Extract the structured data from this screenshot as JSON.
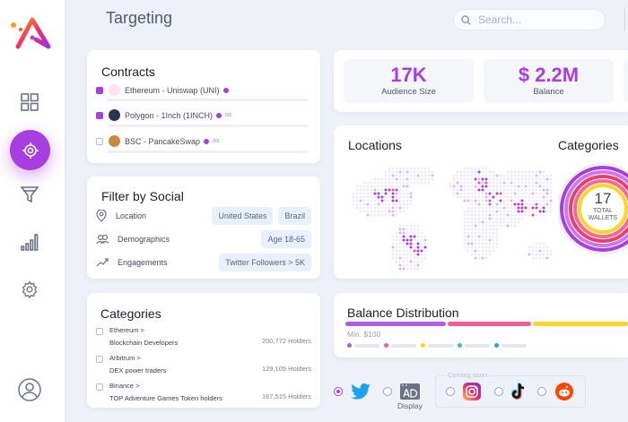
{
  "header": {
    "title": "Targeting",
    "search_placeholder": "Search..."
  },
  "sidebar": {
    "items": [
      {
        "icon": "dashboard-grid-icon"
      },
      {
        "icon": "target-icon",
        "active": true
      },
      {
        "icon": "funnel-icon"
      },
      {
        "icon": "bar-signal-icon"
      },
      {
        "icon": "gear-icon"
      }
    ],
    "profile_icon": "user-circle-icon"
  },
  "contracts": {
    "title": "Contracts",
    "items": [
      {
        "label": "Ethereum - Uniswap (UNI)",
        "checked": true,
        "badge": ""
      },
      {
        "label": "Polygon - 1Inch (1INCH)",
        "checked": true,
        "badge": "385"
      },
      {
        "label": "BSC - PancakeSwap",
        "checked": false,
        "badge": "385"
      }
    ]
  },
  "filter": {
    "title": "Filter by Social",
    "rows": [
      {
        "label": "Location",
        "chips": [
          "United States",
          "Brazil"
        ]
      },
      {
        "label": "Demographics",
        "chips": [
          "Age 18-65"
        ]
      },
      {
        "label": "Engagements",
        "chips": [
          "Twitter Followers > 5K"
        ]
      }
    ]
  },
  "categories": {
    "title": "Categories",
    "items": [
      {
        "parent": "Ethereum >",
        "name": "Blockchain Developers",
        "holders": "200,772 Holders"
      },
      {
        "parent": "Arbitrum >",
        "name": "DEX power traders",
        "holders": "129,105 Holders"
      },
      {
        "parent": "Binance >",
        "name": "TOP Adventure Games Token holders",
        "holders": "167,515 Holders"
      }
    ]
  },
  "stats": [
    {
      "value": "17K",
      "label": "Audience Size"
    },
    {
      "value": "$ 2.2M",
      "label": "Balance"
    }
  ],
  "locations": {
    "title": "Locations"
  },
  "categories_chart": {
    "title": "Categories",
    "center_value": "17",
    "center_label_1": "TOTAL",
    "center_label_2": "WALLETS"
  },
  "balance": {
    "title": "Balance Distribution",
    "min_label": "Min. $100",
    "segments": [
      {
        "color": "#b45be6",
        "share": 0.36
      },
      {
        "color": "#f0608a",
        "share": 0.3
      },
      {
        "color": "#fcd42a",
        "share": 0.34
      }
    ],
    "legend_colors": [
      "#b45be6",
      "#f0608a",
      "#fcd42a",
      "#2ec7a5",
      "#2e9ef0"
    ]
  },
  "channels": {
    "display_label": "Display",
    "coming_soon": "Coming soon",
    "items": [
      {
        "icon": "twitter-icon",
        "selected": true
      },
      {
        "icon": "ad-display-icon",
        "selected": false
      },
      {
        "icon": "instagram-icon",
        "selected": false
      },
      {
        "icon": "tiktok-icon",
        "selected": false
      },
      {
        "icon": "reddit-icon",
        "selected": false
      }
    ]
  },
  "colors": {
    "accent": "#a93ee0",
    "background": "#eef1f7"
  }
}
